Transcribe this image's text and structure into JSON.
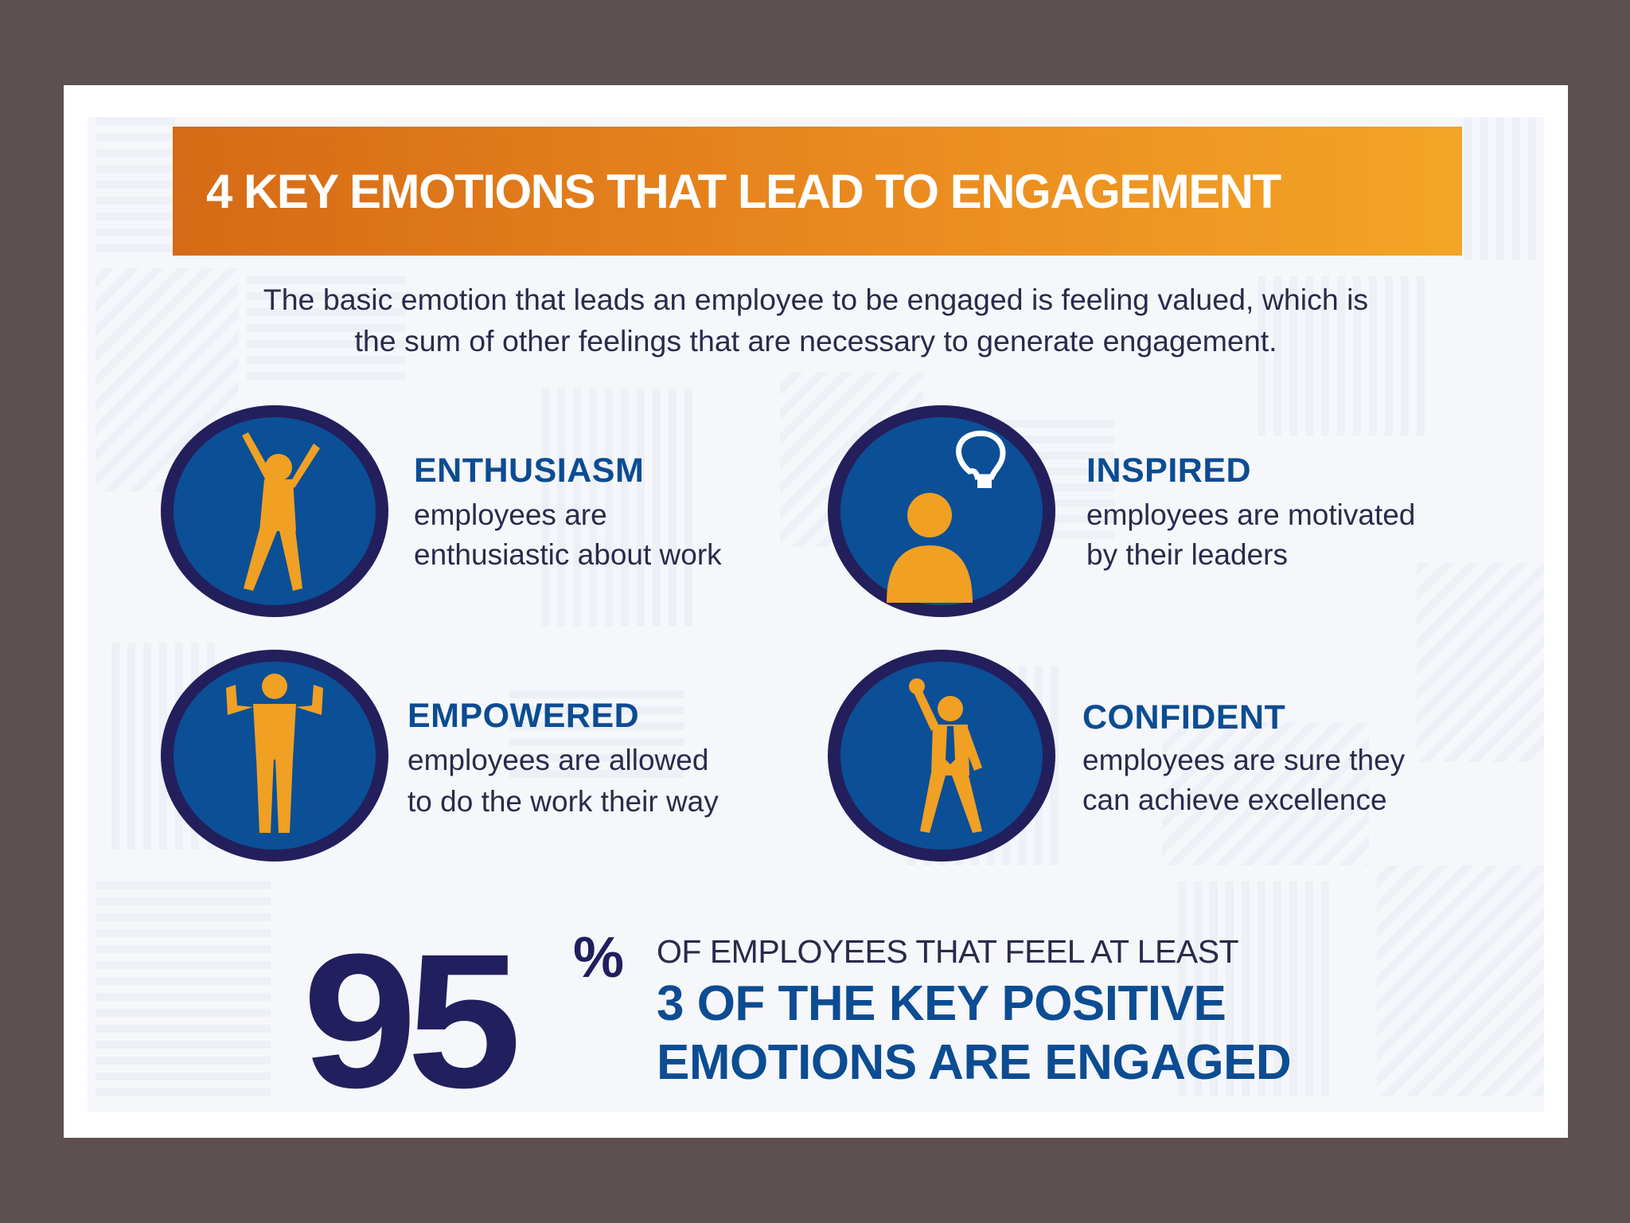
{
  "banner": {
    "title": "4 KEY EMOTIONS THAT LEAD TO ENGAGEMENT"
  },
  "intro": {
    "line1": "The basic emotion that leads an employee to be engaged is feeling valued, which is",
    "line2": "the sum of other feelings that are necessary to generate engagement."
  },
  "emotions": [
    {
      "title": "ENTHUSIASM",
      "line1": "employees are",
      "line2": "enthusiastic about work",
      "icon": "jumping-person-icon"
    },
    {
      "title": "INSPIRED",
      "line1": "employees are motivated",
      "line2": "by their leaders",
      "icon": "lightbulb-person-icon"
    },
    {
      "title": "EMPOWERED",
      "line1": "employees are allowed",
      "line2": "to do the work their way",
      "icon": "flexing-person-icon"
    },
    {
      "title": "CONFIDENT",
      "line1": "employees are sure they",
      "line2": "can achieve excellence",
      "icon": "fist-raised-person-icon"
    }
  ],
  "stat": {
    "number": "95",
    "percent": "%",
    "line1": "OF EMPLOYEES THAT FEEL AT LEAST",
    "line2": "3 OF THE KEY POSITIVE",
    "line3": "EMOTIONS ARE ENGAGED"
  },
  "colors": {
    "background": "#5d5050",
    "banner_start": "#d66a16",
    "banner_end": "#f2a526",
    "circle_fill": "#0b4f96",
    "circle_ring": "#231f5c",
    "icon_orange": "#f0a023",
    "title_blue": "#0c4c92",
    "stat_navy": "#221f5e"
  }
}
